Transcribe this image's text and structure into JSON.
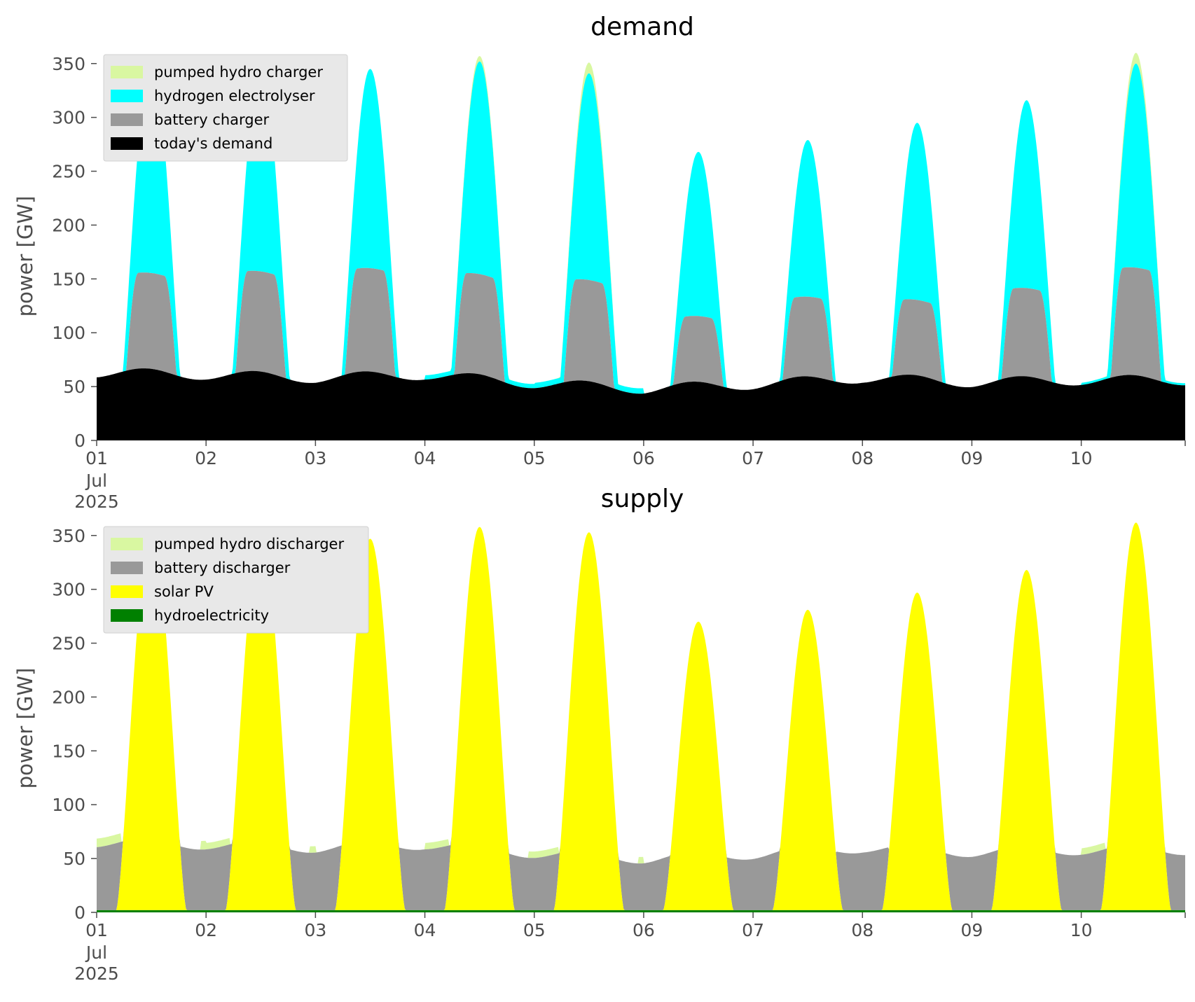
{
  "palette": {
    "pumped_hydro": "#d9f7a1",
    "hydrogen": "#00ffff",
    "battery": "#999999",
    "demand": "#000000",
    "solar": "#ffff00",
    "hydro": "#008000",
    "legend_bg": "#e8e8e8",
    "axis_text": "#4d4d4d"
  },
  "chart_data": [
    {
      "type": "area",
      "stacked": true,
      "title": "demand",
      "ylabel": "power [GW]",
      "ylim": [
        0,
        370
      ],
      "yticks": [
        "0",
        "50",
        "100",
        "150",
        "200",
        "250",
        "300",
        "350"
      ],
      "xlim_days": [
        0,
        9.95
      ],
      "xticks": [
        {
          "day": "01",
          "month": "Jul",
          "year": "2025"
        },
        {
          "day": "02"
        },
        {
          "day": "03"
        },
        {
          "day": "04"
        },
        {
          "day": "05"
        },
        {
          "day": "06"
        },
        {
          "day": "07"
        },
        {
          "day": "08"
        },
        {
          "day": "09"
        },
        {
          "day": "10"
        }
      ],
      "legend_position": "top-left",
      "legend": [
        "pumped hydro charger",
        "hydrogen electrolyser",
        "battery charger",
        "today's demand"
      ],
      "days": [
        {
          "base": 57,
          "peak": 355,
          "battery": 146,
          "pumped": 0,
          "fill": 0
        },
        {
          "base": 55,
          "peak": 349,
          "battery": 148,
          "pumped": 0,
          "fill": 0
        },
        {
          "base": 52,
          "peak": 345,
          "battery": 148,
          "pumped": 0,
          "fill": 0
        },
        {
          "base": 55,
          "peak": 352,
          "battery": 148,
          "pumped": 5,
          "fill": 4
        },
        {
          "base": 47,
          "peak": 341,
          "battery": 141,
          "pumped": 10,
          "fill": 5
        },
        {
          "base": 42,
          "peak": 268,
          "battery": 103,
          "pumped": 0,
          "fill": 0
        },
        {
          "base": 46,
          "peak": 279,
          "battery": 120,
          "pumped": 0,
          "fill": 0
        },
        {
          "base": 52,
          "peak": 295,
          "battery": 122,
          "pumped": 0,
          "fill": 0
        },
        {
          "base": 48,
          "peak": 316,
          "battery": 130,
          "pumped": 0,
          "fill": 0
        },
        {
          "base": 50,
          "peak": 350,
          "battery": 150,
          "pumped": 10,
          "fill": 2
        }
      ]
    },
    {
      "type": "area",
      "stacked": true,
      "title": "supply",
      "ylabel": "power [GW]",
      "ylim": [
        0,
        370
      ],
      "yticks": [
        "0",
        "50",
        "100",
        "150",
        "200",
        "250",
        "300",
        "350"
      ],
      "xlim_days": [
        0,
        9.95
      ],
      "xticks": [
        {
          "day": "01",
          "month": "Jul",
          "year": "2025"
        },
        {
          "day": "02"
        },
        {
          "day": "03"
        },
        {
          "day": "04"
        },
        {
          "day": "05"
        },
        {
          "day": "06"
        },
        {
          "day": "07"
        },
        {
          "day": "08"
        },
        {
          "day": "09"
        },
        {
          "day": "10"
        }
      ],
      "legend_position": "top-left",
      "legend": [
        "pumped hydro discharger",
        "battery discharger",
        "solar PV",
        "hydroelectricity"
      ],
      "days": [
        {
          "base": 57,
          "peak": 355,
          "battery": 48,
          "pumped": 8
        },
        {
          "base": 55,
          "peak": 349,
          "battery": 48,
          "pumped": 6
        },
        {
          "base": 52,
          "peak": 345,
          "battery": 52,
          "pumped": 0
        },
        {
          "base": 55,
          "peak": 356,
          "battery": 48,
          "pumped": 6
        },
        {
          "base": 47,
          "peak": 351,
          "battery": 45,
          "pumped": 6
        },
        {
          "base": 42,
          "peak": 268,
          "battery": 40,
          "pumped": 0
        },
        {
          "base": 46,
          "peak": 279,
          "battery": 44,
          "pumped": 0
        },
        {
          "base": 52,
          "peak": 295,
          "battery": 48,
          "pumped": 0
        },
        {
          "base": 48,
          "peak": 316,
          "battery": 45,
          "pumped": 0
        },
        {
          "base": 50,
          "peak": 360,
          "battery": 45,
          "pumped": 6
        }
      ],
      "hydro_level": 2
    }
  ]
}
